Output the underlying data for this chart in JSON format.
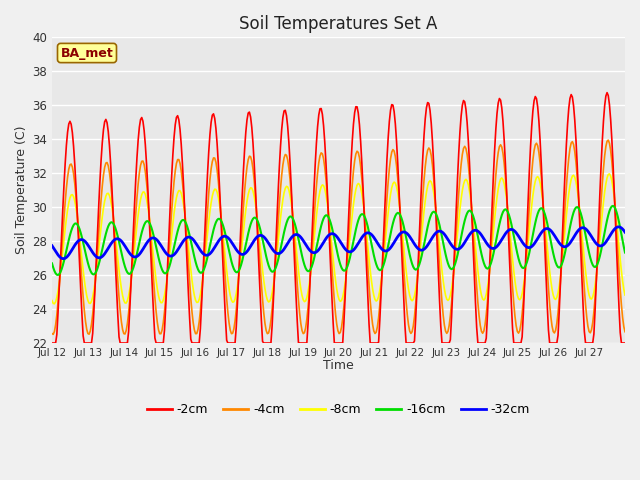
{
  "title": "Soil Temperatures Set A",
  "xlabel": "Time",
  "ylabel": "Soil Temperature (C)",
  "ylim": [
    22,
    40
  ],
  "yticks": [
    22,
    24,
    26,
    28,
    30,
    32,
    34,
    36,
    38,
    40
  ],
  "annotation": "BA_met",
  "fig_facecolor": "#f0f0f0",
  "ax_facecolor": "#e8e8e8",
  "line_colors": {
    "-2cm": "#ff0000",
    "-4cm": "#ff8800",
    "-8cm": "#ffff00",
    "-16cm": "#00dd00",
    "-32cm": "#0000ff"
  },
  "line_widths": {
    "-2cm": 1.2,
    "-4cm": 1.2,
    "-8cm": 1.2,
    "-16cm": 1.5,
    "-32cm": 2.0
  },
  "start_day": 12,
  "end_day": 27,
  "num_points": 480
}
